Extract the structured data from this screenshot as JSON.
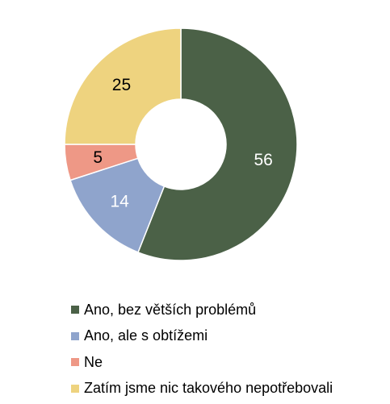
{
  "chart_data": {
    "type": "pie",
    "donut": true,
    "categories": [
      "Ano, bez větších problémů",
      "Ano, ale s obtížemi",
      "Ne",
      "Zatím jsme nic takového nepotřebovali"
    ],
    "values": [
      56,
      14,
      5,
      25
    ],
    "value_labels": [
      "56",
      "14",
      "5",
      "25"
    ],
    "colors": [
      "#4b6147",
      "#8fa4cc",
      "#ee9886",
      "#eed37f"
    ],
    "label_colors": [
      "#ffffff",
      "#ffffff",
      "#000000",
      "#000000"
    ],
    "legend_position": "bottom",
    "title": ""
  }
}
